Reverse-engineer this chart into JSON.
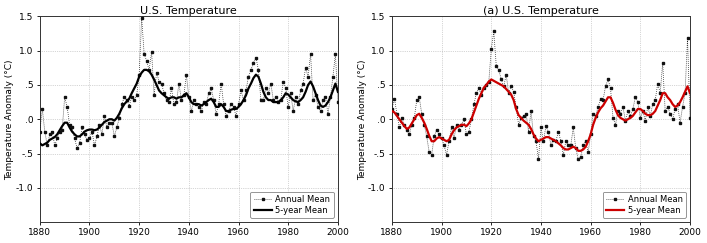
{
  "title_left": "U.S. Temperature",
  "title_right": "(a) U.S. Temperature",
  "ylabel": "Temperature Anomaly (°C)",
  "xlim": [
    1880,
    2000
  ],
  "ylim": [
    -1.5,
    1.5
  ],
  "xticks": [
    1880,
    1900,
    1920,
    1940,
    1960,
    1980,
    2000
  ],
  "ytick_labels": [
    "-1.0",
    "-.5",
    ".0",
    ".5",
    "1.0",
    "1.5"
  ],
  "ytick_vals": [
    -1.0,
    -0.5,
    0.0,
    0.5,
    1.0,
    1.5
  ],
  "annual_left": [
    -0.18,
    0.15,
    -0.18,
    -0.38,
    -0.22,
    -0.18,
    -0.38,
    -0.28,
    -0.18,
    -0.15,
    0.32,
    0.18,
    -0.08,
    -0.12,
    -0.28,
    -0.42,
    -0.35,
    -0.12,
    -0.22,
    -0.3,
    -0.28,
    -0.18,
    -0.38,
    -0.25,
    -0.08,
    -0.22,
    0.05,
    -0.12,
    -0.05,
    -0.05,
    -0.25,
    -0.12,
    0.02,
    0.22,
    0.32,
    0.28,
    0.2,
    0.32,
    0.28,
    0.35,
    0.65,
    1.48,
    0.95,
    0.85,
    0.72,
    0.98,
    0.35,
    0.68,
    0.55,
    0.52,
    0.38,
    0.28,
    0.25,
    0.45,
    0.22,
    0.25,
    0.52,
    0.28,
    0.35,
    0.65,
    0.32,
    0.12,
    0.28,
    0.22,
    0.18,
    0.12,
    0.25,
    0.22,
    0.38,
    0.45,
    0.28,
    0.08,
    0.22,
    0.52,
    0.22,
    0.05,
    0.12,
    0.22,
    0.18,
    0.05,
    0.22,
    0.42,
    0.28,
    0.42,
    0.62,
    0.72,
    0.82,
    0.9,
    0.72,
    0.28,
    0.28,
    0.45,
    0.38,
    0.52,
    0.28,
    0.32,
    0.25,
    0.28,
    0.55,
    0.45,
    0.18,
    0.38,
    0.12,
    0.32,
    0.22,
    0.42,
    0.52,
    0.75,
    0.62,
    0.95,
    0.28,
    0.35,
    0.18,
    0.12,
    0.28,
    0.32,
    0.08,
    0.32,
    0.62,
    0.95,
    0.25
  ],
  "five_year_left": [
    -0.35,
    -0.38,
    -0.36,
    -0.34,
    -0.3,
    -0.28,
    -0.26,
    -0.22,
    -0.16,
    -0.1,
    -0.05,
    -0.05,
    -0.12,
    -0.18,
    -0.22,
    -0.25,
    -0.25,
    -0.22,
    -0.18,
    -0.16,
    -0.15,
    -0.15,
    -0.16,
    -0.15,
    -0.12,
    -0.08,
    -0.04,
    -0.02,
    0.0,
    0.0,
    -0.02,
    0.02,
    0.08,
    0.16,
    0.22,
    0.26,
    0.3,
    0.38,
    0.45,
    0.52,
    0.62,
    0.68,
    0.72,
    0.72,
    0.7,
    0.65,
    0.58,
    0.5,
    0.42,
    0.38,
    0.35,
    0.32,
    0.3,
    0.32,
    0.32,
    0.3,
    0.32,
    0.32,
    0.35,
    0.38,
    0.32,
    0.25,
    0.22,
    0.22,
    0.22,
    0.2,
    0.22,
    0.25,
    0.28,
    0.3,
    0.25,
    0.18,
    0.18,
    0.22,
    0.18,
    0.12,
    0.12,
    0.14,
    0.15,
    0.15,
    0.18,
    0.22,
    0.28,
    0.35,
    0.45,
    0.52,
    0.6,
    0.65,
    0.62,
    0.52,
    0.4,
    0.32,
    0.28,
    0.28,
    0.25,
    0.25,
    0.25,
    0.28,
    0.32,
    0.38,
    0.36,
    0.32,
    0.28,
    0.26,
    0.25,
    0.28,
    0.32,
    0.4,
    0.5,
    0.55,
    0.48,
    0.38,
    0.28,
    0.2,
    0.18,
    0.2,
    0.25,
    0.32,
    0.42,
    0.52,
    0.4
  ],
  "annual_right": [
    0.15,
    0.3,
    0.08,
    -0.12,
    0.02,
    -0.08,
    -0.15,
    -0.22,
    -0.08,
    0.02,
    0.28,
    0.32,
    0.08,
    -0.08,
    -0.25,
    -0.48,
    -0.52,
    -0.25,
    -0.15,
    -0.22,
    -0.28,
    -0.38,
    -0.52,
    -0.32,
    -0.12,
    -0.28,
    -0.08,
    -0.15,
    -0.08,
    0.0,
    -0.22,
    -0.18,
    0.0,
    0.22,
    0.38,
    0.45,
    0.35,
    0.45,
    0.5,
    0.55,
    1.02,
    1.28,
    0.78,
    0.72,
    0.58,
    0.48,
    0.65,
    0.38,
    0.48,
    0.4,
    0.18,
    -0.08,
    0.02,
    0.05,
    0.08,
    -0.18,
    0.12,
    -0.25,
    -0.32,
    -0.58,
    -0.12,
    -0.32,
    -0.1,
    -0.18,
    -0.38,
    -0.3,
    -0.32,
    -0.18,
    -0.32,
    -0.52,
    -0.32,
    -0.38,
    -0.38,
    -0.12,
    -0.42,
    -0.58,
    -0.55,
    -0.38,
    -0.32,
    -0.48,
    -0.22,
    0.08,
    0.05,
    0.18,
    0.3,
    0.28,
    0.48,
    0.58,
    0.45,
    0.02,
    -0.08,
    0.12,
    0.08,
    0.18,
    -0.02,
    0.12,
    0.05,
    0.15,
    0.32,
    0.25,
    0.02,
    0.12,
    -0.02,
    0.18,
    0.05,
    0.22,
    0.28,
    0.52,
    0.38,
    0.82,
    0.12,
    0.18,
    0.08,
    0.0,
    0.15,
    0.22,
    -0.05,
    0.18,
    0.38,
    1.18,
    0.02
  ],
  "five_year_right": [
    0.12,
    0.1,
    0.05,
    0.0,
    -0.05,
    -0.1,
    -0.14,
    -0.12,
    -0.06,
    0.0,
    0.06,
    0.08,
    0.02,
    -0.05,
    -0.14,
    -0.24,
    -0.32,
    -0.32,
    -0.28,
    -0.26,
    -0.28,
    -0.3,
    -0.32,
    -0.3,
    -0.22,
    -0.16,
    -0.12,
    -0.1,
    -0.08,
    -0.08,
    -0.1,
    -0.06,
    0.0,
    0.1,
    0.2,
    0.3,
    0.38,
    0.46,
    0.5,
    0.55,
    0.58,
    0.56,
    0.54,
    0.52,
    0.5,
    0.48,
    0.44,
    0.4,
    0.36,
    0.28,
    0.15,
    0.06,
    0.02,
    -0.02,
    -0.05,
    -0.08,
    -0.14,
    -0.22,
    -0.28,
    -0.32,
    -0.3,
    -0.28,
    -0.26,
    -0.26,
    -0.28,
    -0.3,
    -0.32,
    -0.35,
    -0.38,
    -0.42,
    -0.44,
    -0.44,
    -0.42,
    -0.4,
    -0.42,
    -0.46,
    -0.46,
    -0.44,
    -0.4,
    -0.32,
    -0.22,
    -0.08,
    0.02,
    0.1,
    0.16,
    0.2,
    0.26,
    0.32,
    0.32,
    0.24,
    0.14,
    0.06,
    0.02,
    0.0,
    -0.02,
    0.0,
    0.02,
    0.05,
    0.1,
    0.15,
    0.15,
    0.12,
    0.08,
    0.06,
    0.06,
    0.08,
    0.12,
    0.2,
    0.28,
    0.38,
    0.38,
    0.32,
    0.28,
    0.22,
    0.18,
    0.2,
    0.25,
    0.32,
    0.4,
    0.48,
    0.38
  ],
  "left_5yr_color": "#000000",
  "right_5yr_color": "#cc0000",
  "annual_color": "#111111",
  "bg_color": "#ffffff",
  "grid_color": "#999999"
}
